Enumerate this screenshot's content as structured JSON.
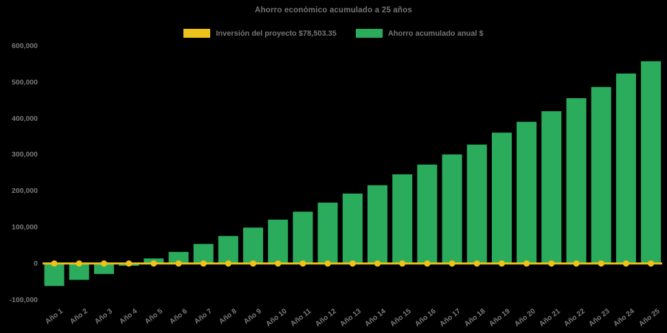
{
  "title": "Ahorro económico acumulado a 25 años",
  "legend": {
    "items": [
      {
        "label": "Inversión del proyecto $78,503.35",
        "color": "#EEC11B"
      },
      {
        "label": "Ahorro acumulado anual $",
        "color": "#2BAC5C"
      }
    ]
  },
  "chart_data": {
    "type": "bar",
    "title": "Ahorro económico acumulado a 25 años",
    "categories": [
      "Año 1",
      "Año 2",
      "Año 3",
      "Año 4",
      "Año 5",
      "Año 6",
      "Año 7",
      "Año 8",
      "Año 9",
      "Año 10",
      "Año 11",
      "Año 12",
      "Año 13",
      "Año 14",
      "Año 15",
      "Año 16",
      "Año 17",
      "Año 18",
      "Año 19",
      "Año 20",
      "Año 21",
      "Año 22",
      "Año 23",
      "Año 24",
      "Año 25"
    ],
    "series": [
      {
        "name": "Inversión del proyecto $78,503.35",
        "type": "line",
        "color": "#EEC11B",
        "marker": "circle",
        "values": [
          0,
          0,
          0,
          0,
          0,
          0,
          0,
          0,
          0,
          0,
          0,
          0,
          0,
          0,
          0,
          0,
          0,
          0,
          0,
          0,
          0,
          0,
          0,
          0,
          0
        ]
      },
      {
        "name": "Ahorro acumulado anual $",
        "type": "bar",
        "color": "#2BAC5C",
        "values": [
          -62000,
          -45000,
          -29000,
          -6000,
          14000,
          32000,
          54000,
          76000,
          99000,
          121000,
          143000,
          168000,
          193000,
          216000,
          246000,
          273000,
          301000,
          328000,
          361000,
          391000,
          420000,
          456000,
          487000,
          524000,
          558000
        ]
      }
    ],
    "xlabel": "",
    "ylabel": "",
    "ylim": [
      -100000,
      600000
    ],
    "yticks": [
      -100000,
      0,
      100000,
      200000,
      300000,
      400000,
      500000,
      600000
    ],
    "grid": false,
    "legend_position": "top-center",
    "background_color": "#000000",
    "text_color": "#7a7a7a"
  }
}
